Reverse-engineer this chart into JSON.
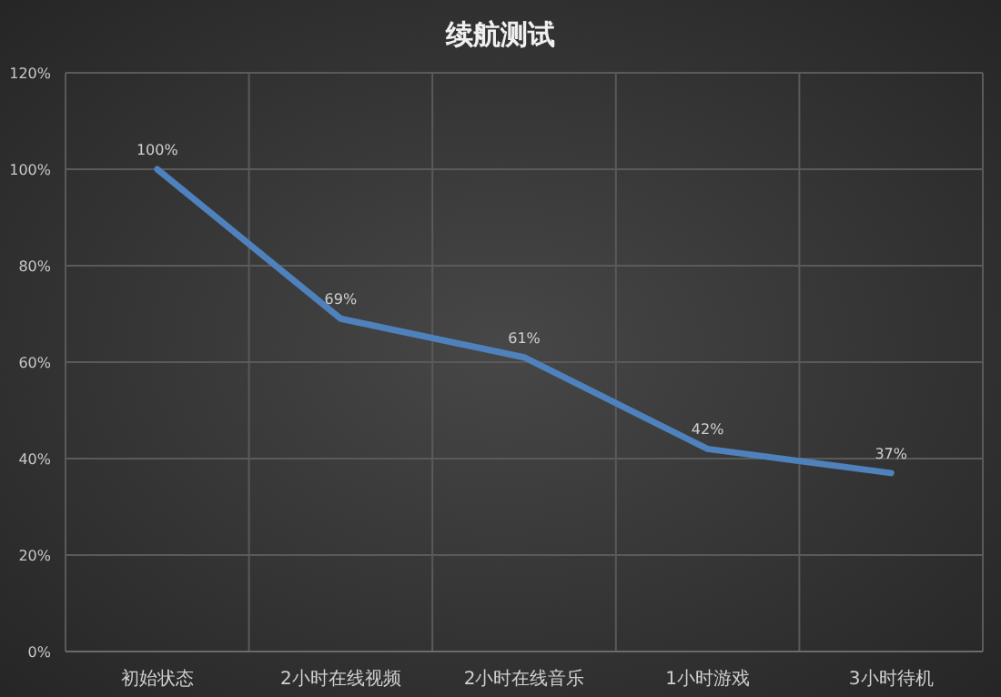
{
  "chart_data": {
    "type": "line",
    "title": "续航测试",
    "categories": [
      "初始状态",
      "2小时在线视频",
      "2小时在线音乐",
      "1小时游戏",
      "3小时待机"
    ],
    "series": [
      {
        "color": "#4f81bd",
        "values": [
          100,
          69,
          61,
          42,
          37
        ],
        "value_labels": [
          "100%",
          "69%",
          "61%",
          "42%",
          "37%"
        ]
      }
    ],
    "ylim": [
      0,
      120
    ],
    "yticks": [
      {
        "value": 0,
        "label": "0%"
      },
      {
        "value": 20,
        "label": "20%"
      },
      {
        "value": 40,
        "label": "40%"
      },
      {
        "value": 60,
        "label": "60%"
      },
      {
        "value": 80,
        "label": "80%"
      },
      {
        "value": 100,
        "label": "100%"
      },
      {
        "value": 120,
        "label": "120%"
      }
    ],
    "grid": true,
    "marker": "none",
    "line_style": "solid"
  }
}
